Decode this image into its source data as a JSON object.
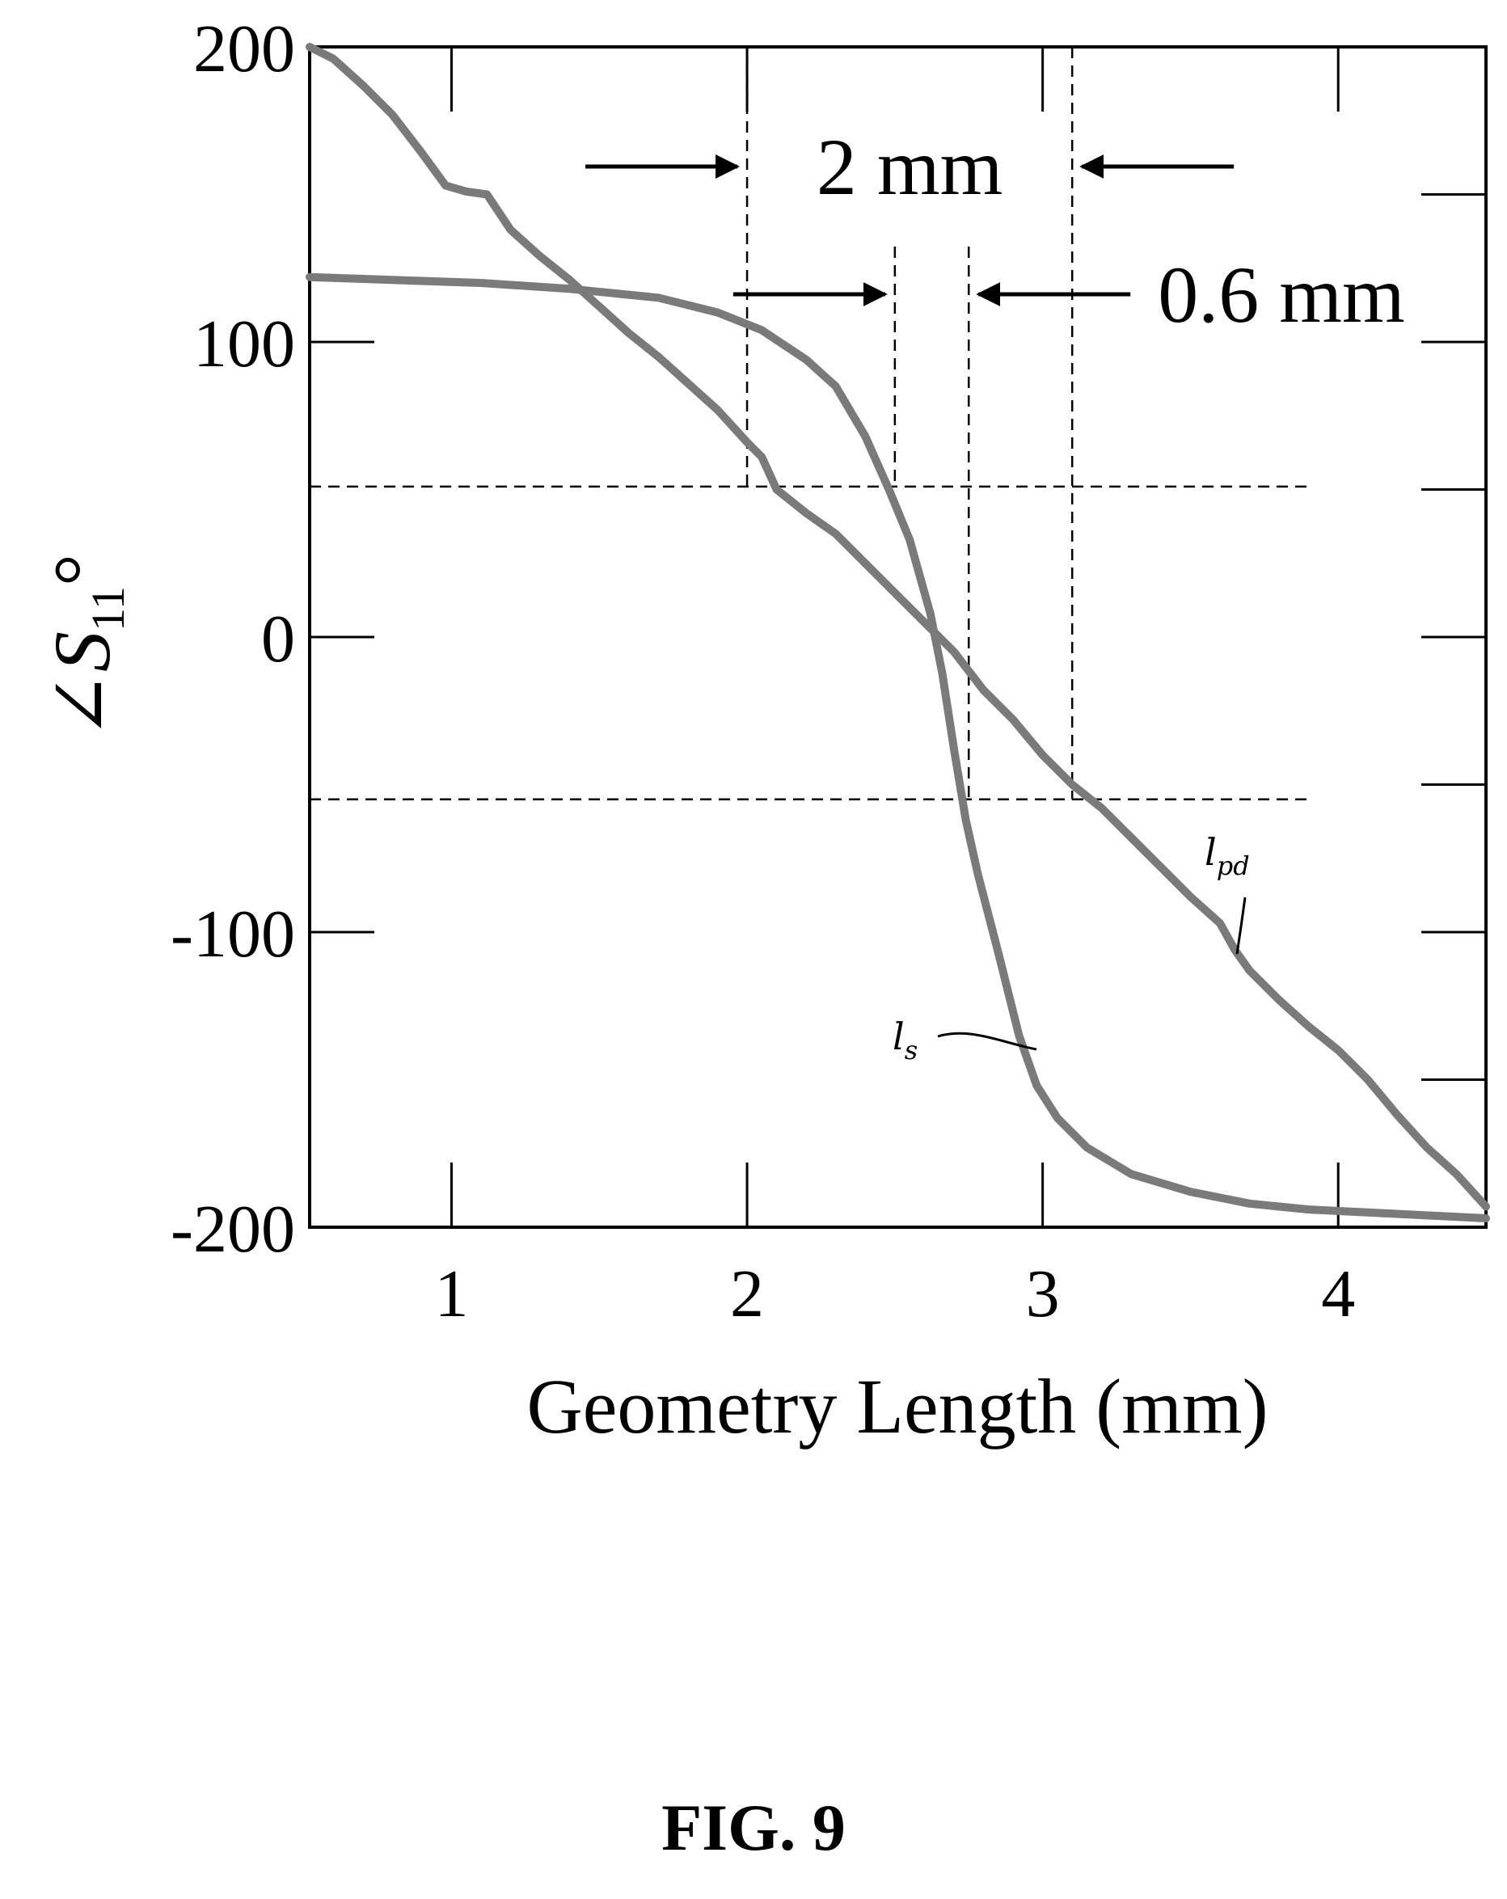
{
  "chart_data": {
    "type": "line",
    "title": "",
    "xlabel": "Geometry Length (mm)",
    "ylabel": {
      "angle_symbol": "∠",
      "symbol": "S",
      "subscript": "11",
      "suffix": "°"
    },
    "xlim": [
      0.52,
      4.5
    ],
    "ylim": [
      -200,
      200
    ],
    "x_ticks": [
      1,
      2,
      3,
      4
    ],
    "y_ticks": [
      200,
      100,
      0,
      -100,
      -200
    ],
    "x_tick_labels": [
      "1",
      "2",
      "3",
      "4"
    ],
    "y_tick_labels": [
      "200",
      "100",
      "0",
      "-100",
      "-200"
    ],
    "grid": false,
    "legend": "none",
    "series": [
      {
        "name": "l_s",
        "label": {
          "main": "l",
          "sub": "s"
        },
        "color": "#7a7a7a",
        "points": [
          [
            0.52,
            122
          ],
          [
            0.8,
            121
          ],
          [
            1.1,
            120
          ],
          [
            1.4,
            118
          ],
          [
            1.7,
            115
          ],
          [
            1.9,
            110
          ],
          [
            2.05,
            104
          ],
          [
            2.2,
            94
          ],
          [
            2.3,
            85
          ],
          [
            2.4,
            68
          ],
          [
            2.48,
            50
          ],
          [
            2.55,
            33
          ],
          [
            2.62,
            8
          ],
          [
            2.66,
            -12
          ],
          [
            2.7,
            -38
          ],
          [
            2.74,
            -62
          ],
          [
            2.78,
            -80
          ],
          [
            2.85,
            -107
          ],
          [
            2.92,
            -135
          ],
          [
            2.98,
            -152
          ],
          [
            3.05,
            -163
          ],
          [
            3.15,
            -173
          ],
          [
            3.3,
            -182
          ],
          [
            3.5,
            -188
          ],
          [
            3.7,
            -192
          ],
          [
            3.9,
            -194
          ],
          [
            4.1,
            -195
          ],
          [
            4.3,
            -196
          ],
          [
            4.5,
            -197
          ]
        ]
      },
      {
        "name": "l_pd",
        "label": {
          "main": "l",
          "sub": "pd"
        },
        "color": "#7a7a7a",
        "points": [
          [
            0.52,
            200
          ],
          [
            0.6,
            196
          ],
          [
            0.7,
            187
          ],
          [
            0.8,
            177
          ],
          [
            0.9,
            164
          ],
          [
            0.98,
            153
          ],
          [
            1.05,
            151
          ],
          [
            1.12,
            150
          ],
          [
            1.2,
            138
          ],
          [
            1.3,
            129
          ],
          [
            1.4,
            121
          ],
          [
            1.5,
            112
          ],
          [
            1.6,
            103
          ],
          [
            1.7,
            95
          ],
          [
            1.8,
            86
          ],
          [
            1.9,
            77
          ],
          [
            2.0,
            66
          ],
          [
            2.05,
            61
          ],
          [
            2.1,
            50
          ],
          [
            2.2,
            42
          ],
          [
            2.3,
            35
          ],
          [
            2.4,
            25
          ],
          [
            2.5,
            15
          ],
          [
            2.6,
            5
          ],
          [
            2.7,
            -5
          ],
          [
            2.8,
            -18
          ],
          [
            2.9,
            -28
          ],
          [
            3.0,
            -40
          ],
          [
            3.1,
            -50
          ],
          [
            3.2,
            -58
          ],
          [
            3.3,
            -68
          ],
          [
            3.4,
            -78
          ],
          [
            3.5,
            -88
          ],
          [
            3.6,
            -97
          ],
          [
            3.65,
            -106
          ],
          [
            3.7,
            -113
          ],
          [
            3.8,
            -123
          ],
          [
            3.9,
            -132
          ],
          [
            4.0,
            -140
          ],
          [
            4.1,
            -150
          ],
          [
            4.2,
            -162
          ],
          [
            4.3,
            -173
          ],
          [
            4.4,
            -182
          ],
          [
            4.5,
            -193
          ]
        ]
      }
    ],
    "reference_lines": {
      "vertical_x": [
        2.0,
        2.5,
        2.75,
        3.1
      ],
      "horizontal_y": [
        51,
        -55
      ]
    },
    "annotations": [
      {
        "text": "2 mm",
        "span": [
          2.0,
          3.1
        ]
      },
      {
        "text": "0.6 mm",
        "span": [
          2.5,
          2.75
        ]
      }
    ]
  },
  "caption": "FIG. 9"
}
